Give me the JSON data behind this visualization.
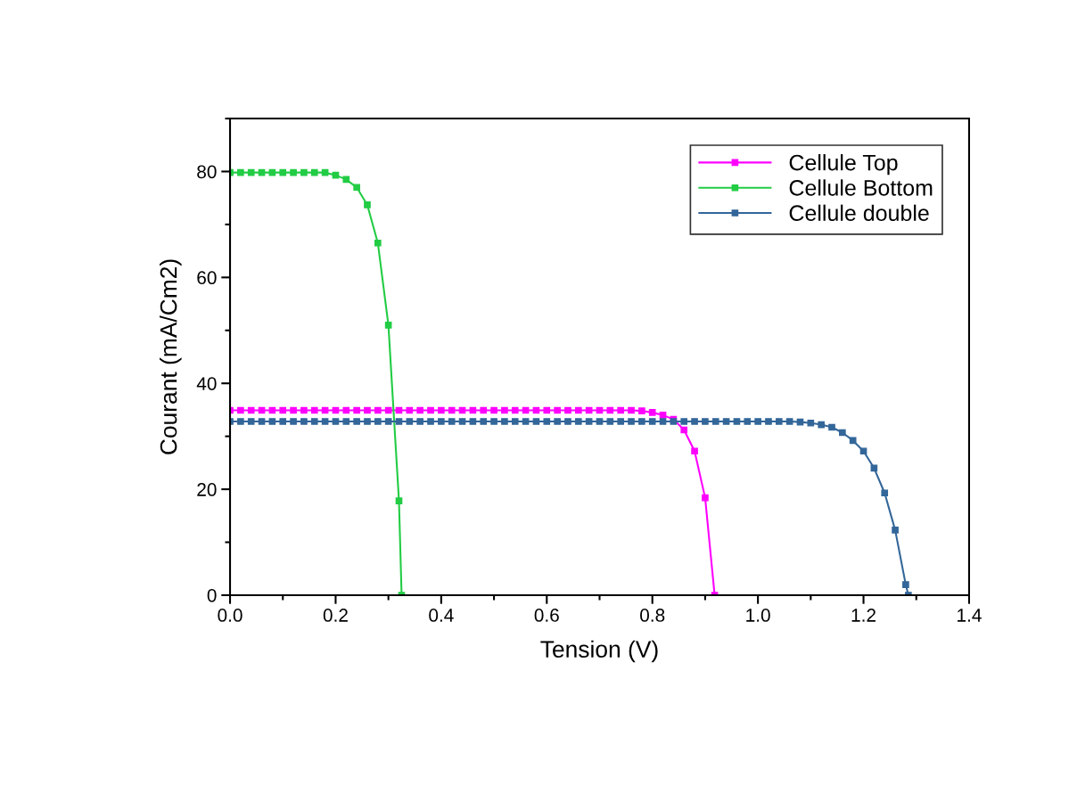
{
  "chart_data": {
    "type": "line",
    "xlabel": "Tension (V)",
    "ylabel": "Courant (mA/Cm2)",
    "xlim": [
      0,
      1.4
    ],
    "ylim": [
      0,
      90
    ],
    "xticks": [
      {
        "value": 0,
        "label": "0.0"
      },
      0.2,
      0.4,
      0.6,
      0.8,
      {
        "value": 1,
        "label": "1.0"
      },
      1.2,
      1.4
    ],
    "yticks": [
      0,
      20,
      40,
      60,
      80
    ],
    "grid": false,
    "legend": "top right",
    "marker": "square",
    "line_style": "solid",
    "series": [
      {
        "name": "Cellule Top",
        "color": "#ff00ff",
        "x": [
          0,
          0.02,
          0.04,
          0.06,
          0.08,
          0.1,
          0.12,
          0.14,
          0.16,
          0.18,
          0.2,
          0.22,
          0.24,
          0.26,
          0.28,
          0.3,
          0.32,
          0.34,
          0.36,
          0.38,
          0.4,
          0.42,
          0.44,
          0.46,
          0.48,
          0.5,
          0.52,
          0.54,
          0.56,
          0.58,
          0.6,
          0.62,
          0.64,
          0.66,
          0.68,
          0.7,
          0.72,
          0.74,
          0.76,
          0.78,
          0.8,
          0.82,
          0.84,
          0.86,
          0.88,
          0.9,
          0.918
        ],
        "values": [
          34.9,
          34.9,
          34.9,
          34.9,
          34.9,
          34.9,
          34.9,
          34.9,
          34.9,
          34.9,
          34.9,
          34.9,
          34.9,
          34.9,
          34.9,
          34.9,
          34.9,
          34.9,
          34.9,
          34.9,
          34.9,
          34.9,
          34.9,
          34.9,
          34.9,
          34.9,
          34.9,
          34.9,
          34.9,
          34.9,
          34.9,
          34.9,
          34.9,
          34.9,
          34.9,
          34.9,
          34.9,
          34.9,
          34.9,
          34.8,
          34.5,
          34.0,
          33.2,
          31.2,
          27.2,
          18.4,
          0
        ]
      },
      {
        "name": "Cellule Bottom",
        "color": "#22cc44",
        "x": [
          0,
          0.02,
          0.04,
          0.06,
          0.08,
          0.1,
          0.12,
          0.14,
          0.16,
          0.18,
          0.2,
          0.22,
          0.24,
          0.26,
          0.28,
          0.3,
          0.32,
          0.325
        ],
        "values": [
          79.8,
          79.8,
          79.8,
          79.8,
          79.8,
          79.8,
          79.8,
          79.8,
          79.8,
          79.8,
          79.3,
          78.5,
          77,
          73.7,
          66.5,
          51,
          17.8,
          0
        ]
      },
      {
        "name": "Cellule double",
        "color": "#336699",
        "x": [
          0,
          0.02,
          0.04,
          0.06,
          0.08,
          0.1,
          0.12,
          0.14,
          0.16,
          0.18,
          0.2,
          0.22,
          0.24,
          0.26,
          0.28,
          0.3,
          0.32,
          0.34,
          0.36,
          0.38,
          0.4,
          0.42,
          0.44,
          0.46,
          0.48,
          0.5,
          0.52,
          0.54,
          0.56,
          0.58,
          0.6,
          0.62,
          0.64,
          0.66,
          0.68,
          0.7,
          0.72,
          0.74,
          0.76,
          0.78,
          0.8,
          0.82,
          0.84,
          0.86,
          0.88,
          0.9,
          0.92,
          0.94,
          0.96,
          0.98,
          1,
          1.02,
          1.04,
          1.06,
          1.08,
          1.1,
          1.12,
          1.14,
          1.16,
          1.18,
          1.2,
          1.22,
          1.24,
          1.26,
          1.28,
          1.285
        ],
        "values": [
          32.8,
          32.8,
          32.8,
          32.8,
          32.8,
          32.8,
          32.8,
          32.8,
          32.8,
          32.8,
          32.8,
          32.8,
          32.8,
          32.8,
          32.8,
          32.8,
          32.8,
          32.8,
          32.8,
          32.8,
          32.8,
          32.8,
          32.8,
          32.8,
          32.8,
          32.8,
          32.8,
          32.8,
          32.8,
          32.8,
          32.8,
          32.8,
          32.8,
          32.8,
          32.8,
          32.8,
          32.8,
          32.8,
          32.8,
          32.8,
          32.8,
          32.8,
          32.8,
          32.8,
          32.8,
          32.8,
          32.8,
          32.8,
          32.8,
          32.8,
          32.8,
          32.8,
          32.8,
          32.8,
          32.7,
          32.5,
          32.2,
          31.7,
          30.7,
          29.2,
          27.2,
          24,
          19.3,
          12.3,
          2,
          0
        ]
      }
    ]
  }
}
